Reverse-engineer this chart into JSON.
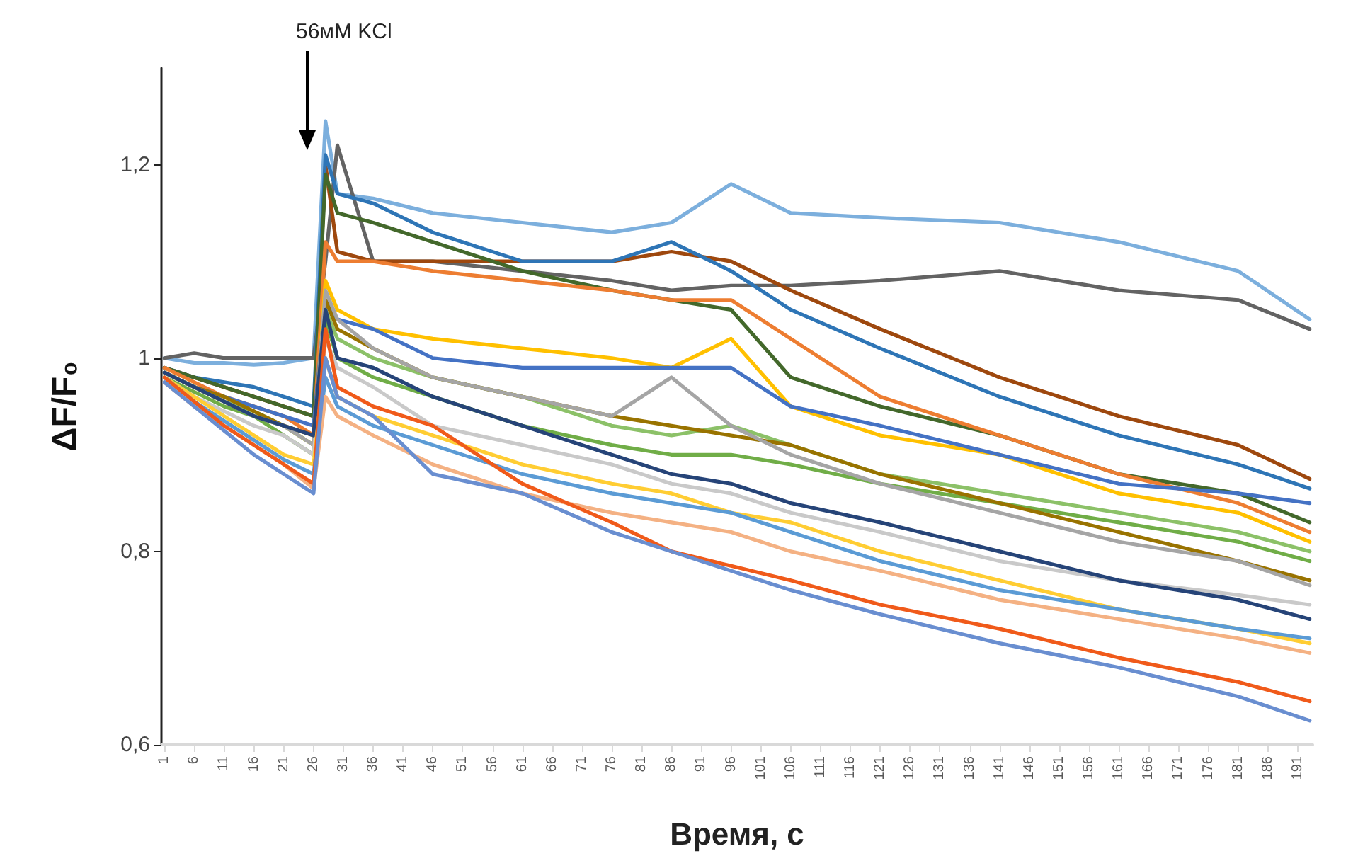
{
  "chart_data": {
    "type": "line",
    "xlabel": "Время, с",
    "ylabel": "ΔF/F₀",
    "x": [
      1,
      6,
      11,
      16,
      21,
      26,
      28,
      30,
      36,
      46,
      61,
      76,
      86,
      96,
      106,
      121,
      141,
      161,
      181,
      193
    ],
    "xlim": [
      0.5,
      193.5
    ],
    "xticks": [
      1,
      6,
      11,
      16,
      21,
      26,
      31,
      36,
      41,
      46,
      51,
      56,
      61,
      66,
      71,
      76,
      81,
      86,
      91,
      96,
      101,
      106,
      111,
      116,
      121,
      126,
      131,
      136,
      141,
      146,
      151,
      156,
      161,
      166,
      171,
      176,
      181,
      186,
      191
    ],
    "ylim": [
      0.6,
      1.3
    ],
    "yticks": [
      {
        "value": 0.6,
        "label": "0,6"
      },
      {
        "value": 0.8,
        "label": "0,8"
      },
      {
        "value": 1,
        "label": "1"
      },
      {
        "value": 1.2,
        "label": "1,2"
      }
    ],
    "grid": false,
    "marker": "none",
    "line_style": "solid",
    "annotations": [
      "56мМ KCl"
    ],
    "series": [
      {
        "color": "#7cafdd",
        "values": [
          1.0,
          0.995,
          0.995,
          0.993,
          0.995,
          1.0,
          1.245,
          1.17,
          1.165,
          1.15,
          1.14,
          1.13,
          1.14,
          1.18,
          1.15,
          1.145,
          1.14,
          1.12,
          1.09,
          1.04
        ]
      },
      {
        "color": "#636363",
        "values": [
          1.0,
          1.005,
          1.0,
          1.0,
          1.0,
          1.0,
          1.1,
          1.22,
          1.1,
          1.1,
          1.09,
          1.08,
          1.07,
          1.075,
          1.075,
          1.08,
          1.09,
          1.07,
          1.06,
          1.03
        ]
      },
      {
        "color": "#9e480e",
        "values": [
          0.99,
          0.98,
          0.97,
          0.96,
          0.95,
          0.94,
          1.2,
          1.11,
          1.1,
          1.1,
          1.1,
          1.1,
          1.11,
          1.1,
          1.07,
          1.03,
          0.98,
          0.94,
          0.91,
          0.875
        ]
      },
      {
        "color": "#2e75b6",
        "values": [
          0.99,
          0.98,
          0.975,
          0.97,
          0.96,
          0.95,
          1.21,
          1.17,
          1.16,
          1.13,
          1.1,
          1.1,
          1.12,
          1.09,
          1.05,
          1.01,
          0.96,
          0.92,
          0.89,
          0.865
        ]
      },
      {
        "color": "#43682b",
        "values": [
          0.99,
          0.98,
          0.97,
          0.96,
          0.95,
          0.94,
          1.19,
          1.15,
          1.14,
          1.12,
          1.09,
          1.07,
          1.06,
          1.05,
          0.98,
          0.95,
          0.92,
          0.88,
          0.86,
          0.83
        ]
      },
      {
        "color": "#ed7d31",
        "values": [
          0.99,
          0.975,
          0.96,
          0.95,
          0.94,
          0.92,
          1.12,
          1.1,
          1.1,
          1.09,
          1.08,
          1.07,
          1.06,
          1.06,
          1.02,
          0.96,
          0.92,
          0.88,
          0.85,
          0.82
        ]
      },
      {
        "color": "#ffc000",
        "values": [
          0.985,
          0.97,
          0.955,
          0.94,
          0.93,
          0.91,
          1.08,
          1.05,
          1.03,
          1.02,
          1.01,
          1.0,
          0.99,
          1.02,
          0.95,
          0.92,
          0.9,
          0.86,
          0.84,
          0.81
        ]
      },
      {
        "color": "#4472c4",
        "values": [
          0.985,
          0.97,
          0.96,
          0.95,
          0.94,
          0.93,
          1.06,
          1.04,
          1.03,
          1.0,
          0.99,
          0.99,
          0.99,
          0.99,
          0.95,
          0.93,
          0.9,
          0.87,
          0.86,
          0.85
        ]
      },
      {
        "color": "#8cc168",
        "values": [
          0.985,
          0.97,
          0.955,
          0.945,
          0.93,
          0.91,
          1.05,
          1.02,
          1.0,
          0.98,
          0.96,
          0.93,
          0.92,
          0.93,
          0.91,
          0.88,
          0.86,
          0.84,
          0.82,
          0.8
        ]
      },
      {
        "color": "#70ad47",
        "values": [
          0.98,
          0.965,
          0.95,
          0.94,
          0.92,
          0.9,
          1.04,
          1.0,
          0.98,
          0.96,
          0.93,
          0.91,
          0.9,
          0.9,
          0.89,
          0.87,
          0.85,
          0.83,
          0.81,
          0.79
        ]
      },
      {
        "color": "#997300",
        "values": [
          0.985,
          0.97,
          0.96,
          0.945,
          0.93,
          0.92,
          1.06,
          1.03,
          1.01,
          0.98,
          0.96,
          0.94,
          0.93,
          0.92,
          0.91,
          0.88,
          0.85,
          0.82,
          0.79,
          0.77
        ]
      },
      {
        "color": "#a5a5a5",
        "values": [
          0.985,
          0.97,
          0.955,
          0.94,
          0.93,
          0.91,
          1.07,
          1.04,
          1.01,
          0.98,
          0.96,
          0.94,
          0.98,
          0.93,
          0.9,
          0.87,
          0.84,
          0.81,
          0.79,
          0.765
        ]
      },
      {
        "color": "#c9c9c9",
        "values": [
          0.98,
          0.96,
          0.945,
          0.93,
          0.92,
          0.9,
          1.02,
          0.99,
          0.97,
          0.93,
          0.91,
          0.89,
          0.87,
          0.86,
          0.84,
          0.82,
          0.79,
          0.77,
          0.755,
          0.745
        ]
      },
      {
        "color": "#264478",
        "values": [
          0.985,
          0.97,
          0.955,
          0.94,
          0.93,
          0.92,
          1.05,
          1.0,
          0.99,
          0.96,
          0.93,
          0.9,
          0.88,
          0.87,
          0.85,
          0.83,
          0.8,
          0.77,
          0.75,
          0.73
        ]
      },
      {
        "color": "#ffcd33",
        "values": [
          0.98,
          0.96,
          0.94,
          0.92,
          0.9,
          0.89,
          1.0,
          0.96,
          0.94,
          0.92,
          0.89,
          0.87,
          0.86,
          0.84,
          0.83,
          0.8,
          0.77,
          0.74,
          0.72,
          0.705
        ]
      },
      {
        "color": "#5b9bd5",
        "values": [
          0.98,
          0.955,
          0.935,
          0.915,
          0.895,
          0.88,
          0.98,
          0.95,
          0.93,
          0.91,
          0.88,
          0.86,
          0.85,
          0.84,
          0.82,
          0.79,
          0.76,
          0.74,
          0.72,
          0.71
        ]
      },
      {
        "color": "#f4b183",
        "values": [
          0.975,
          0.95,
          0.93,
          0.91,
          0.89,
          0.865,
          0.96,
          0.94,
          0.92,
          0.89,
          0.86,
          0.84,
          0.83,
          0.82,
          0.8,
          0.78,
          0.75,
          0.73,
          0.71,
          0.695
        ]
      },
      {
        "color": "#f05a1a",
        "values": [
          0.98,
          0.955,
          0.93,
          0.91,
          0.89,
          0.87,
          1.03,
          0.97,
          0.95,
          0.93,
          0.87,
          0.83,
          0.8,
          0.785,
          0.77,
          0.745,
          0.72,
          0.69,
          0.665,
          0.645
        ]
      },
      {
        "color": "#698ed0",
        "values": [
          0.975,
          0.95,
          0.925,
          0.9,
          0.88,
          0.86,
          1.0,
          0.96,
          0.94,
          0.88,
          0.86,
          0.82,
          0.8,
          0.78,
          0.76,
          0.735,
          0.705,
          0.68,
          0.65,
          0.625
        ]
      }
    ]
  }
}
